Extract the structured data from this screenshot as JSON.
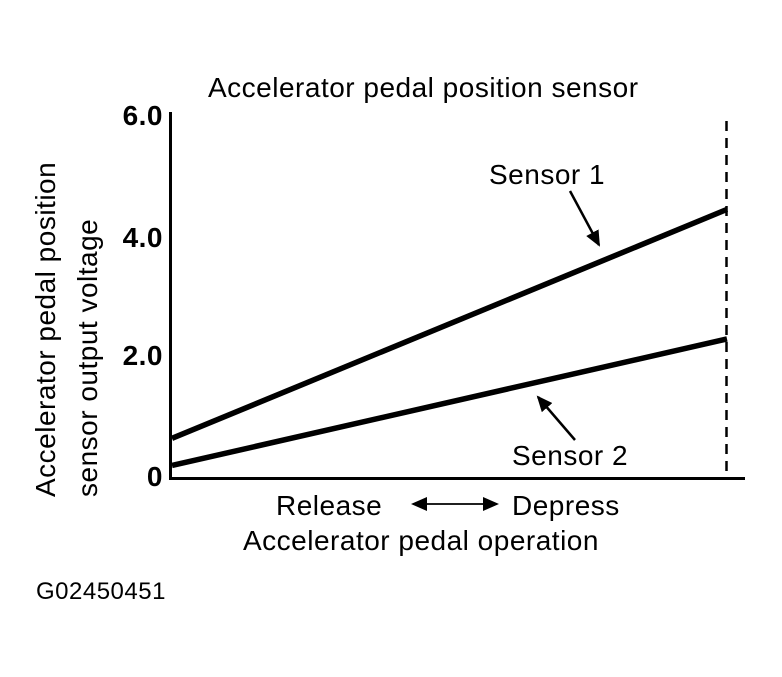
{
  "figure": {
    "id_code": "G02450451",
    "title": "Accelerator pedal position sensor"
  },
  "y_axis": {
    "label_line1": "Accelerator pedal position",
    "label_line2": "sensor output voltage",
    "tick_labels": [
      "6.0",
      "4.0",
      "2.0",
      "0"
    ]
  },
  "x_axis": {
    "label": "Accelerator pedal operation",
    "release_label": "Release",
    "depress_label": "Depress"
  },
  "annotations": {
    "sensor1_label": "Sensor 1",
    "sensor2_label": "Sensor 2"
  },
  "colors": {
    "foreground": "#000000",
    "background": "#ffffff"
  },
  "chart_data": {
    "type": "line",
    "title": "Accelerator pedal position sensor",
    "xlabel": "Accelerator pedal operation",
    "ylabel": "Accelerator pedal position sensor output voltage",
    "x": [
      "Release",
      "Depress"
    ],
    "x_note": "x axis is unlabeled pedal travel from fully released to fully depressed (dashed vertical line marks full depression)",
    "series": [
      {
        "name": "Sensor 1",
        "values": [
          0.65,
          4.45
        ]
      },
      {
        "name": "Sensor 2",
        "values": [
          0.2,
          2.3
        ]
      }
    ],
    "ylim": [
      0,
      6
    ],
    "yticks": [
      0,
      2.0,
      4.0,
      6.0
    ],
    "grid": false,
    "legend_position": "inline annotations with leader arrows"
  }
}
